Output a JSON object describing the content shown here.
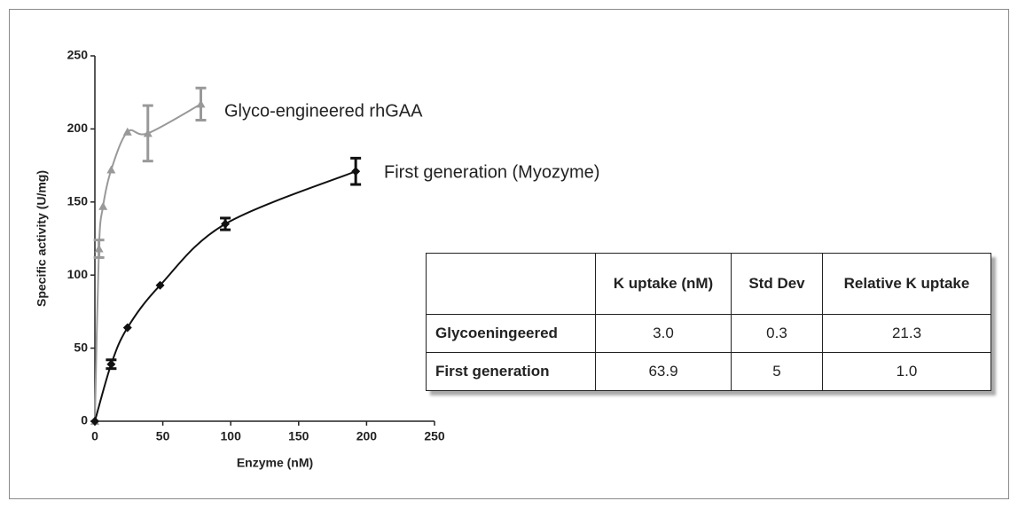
{
  "chart_data": {
    "type": "scatter",
    "xlabel": "Enzyme (nM)",
    "ylabel": "Specific activity (U/mg)",
    "xlim": [
      0,
      250
    ],
    "xticks": [
      0,
      50,
      100,
      150,
      200,
      250
    ],
    "ylim": [
      0,
      250
    ],
    "yticks": [
      0,
      50,
      100,
      150,
      200,
      250
    ],
    "series": [
      {
        "name": "Glyco-engineered rhGAA",
        "color": "#999999",
        "marker": "triangle",
        "x": [
          0,
          3,
          6,
          12,
          24,
          39,
          78
        ],
        "values": [
          0,
          118,
          147,
          172,
          198,
          197,
          217
        ],
        "errors": [
          null,
          6,
          null,
          null,
          null,
          19,
          11
        ]
      },
      {
        "name": "First generation (Myozyme)",
        "color": "#111111",
        "marker": "diamond",
        "x": [
          0,
          12,
          24,
          48,
          96,
          192
        ],
        "values": [
          0,
          39,
          64,
          93,
          135,
          171
        ],
        "errors": [
          null,
          3,
          null,
          null,
          4,
          9
        ]
      }
    ]
  },
  "table": {
    "header": [
      "K uptake (nM)",
      "Std Dev",
      "Relative K uptake"
    ],
    "rows": [
      [
        "Glycoeningeered",
        "3.0",
        "0.3",
        "21.3"
      ],
      [
        "First generation",
        "63.9",
        "5",
        "1.0"
      ]
    ]
  }
}
